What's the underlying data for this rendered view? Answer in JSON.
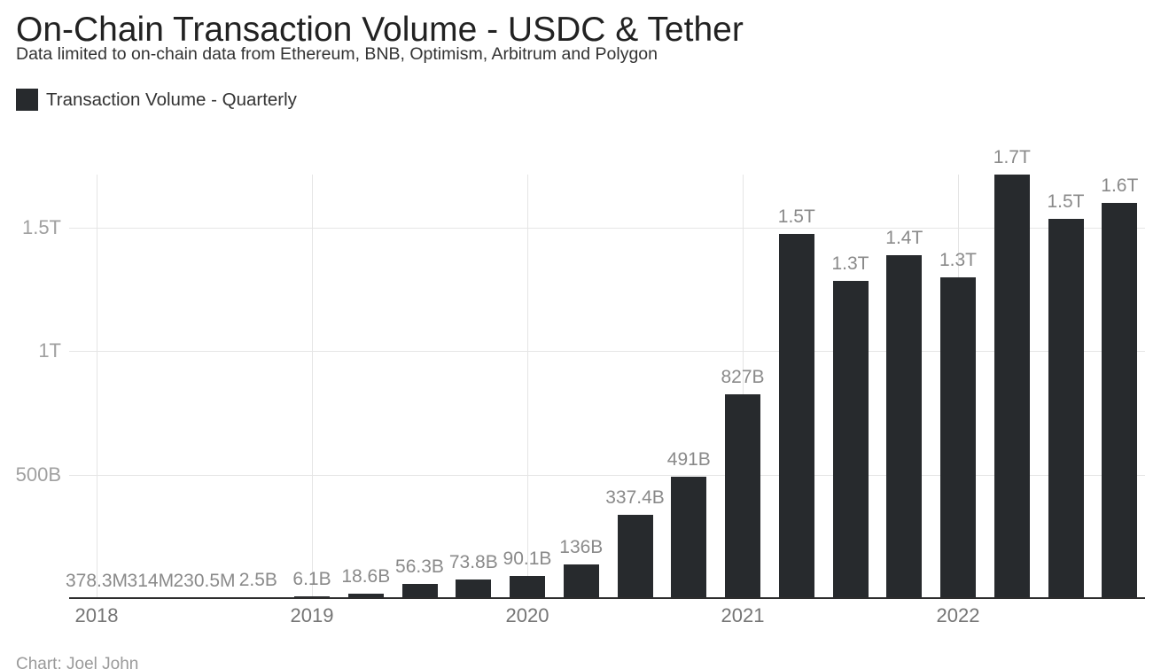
{
  "header": {
    "title": "On-Chain Transaction Volume - USDC & Tether",
    "subtitle": "Data limited to on-chain data from Ethereum, BNB, Optimism, Arbitrum and Polygon",
    "legend": {
      "label": "Transaction Volume - Quarterly"
    }
  },
  "footer": {
    "credit": "Chart: Joel John"
  },
  "colors": {
    "bar": "#272a2d",
    "title_text": "#222222",
    "subtitle_text": "#333333",
    "value_label_text": "#8a8a8a",
    "x_tick_text": "#757575",
    "y_tick_text": "#a0a0a0",
    "gridline": "#e5e5e5",
    "axis_baseline": "#2d2d2d"
  },
  "chart_data": {
    "type": "bar",
    "title": "On-Chain Transaction Volume - USDC & Tether",
    "subtitle": "Data limited to on-chain data from Ethereum, BNB, Optimism, Arbitrum and Polygon",
    "series_name": "Transaction Volume - Quarterly",
    "unit": "USD",
    "categories": [
      "2018 Q1",
      "2018 Q2",
      "2018 Q3",
      "2018 Q4",
      "2019 Q1",
      "2019 Q2",
      "2019 Q3",
      "2019 Q4",
      "2020 Q1",
      "2020 Q2",
      "2020 Q3",
      "2020 Q4",
      "2021 Q1",
      "2021 Q2",
      "2021 Q3",
      "2021 Q4",
      "2022 Q1",
      "2022 Q2",
      "2022 Q3",
      "2022 Q4"
    ],
    "values_billions": [
      0.3783,
      0.314,
      0.2305,
      2.5,
      6.1,
      18.6,
      56.3,
      73.8,
      90.1,
      136,
      337.4,
      491,
      827,
      1475,
      1285,
      1390,
      1300,
      1715,
      1535,
      1600
    ],
    "bar_labels": [
      "378.3M",
      "314M",
      "230.5M",
      "2.5B",
      "6.1B",
      "18.6B",
      "56.3B",
      "73.8B",
      "90.1B",
      "136B",
      "337.4B",
      "491B",
      "827B",
      "1.5T",
      "1.3T",
      "1.4T",
      "1.3T",
      "1.7T",
      "1.5T",
      "1.6T"
    ],
    "x_tick_labels": [
      "2018",
      "2019",
      "2020",
      "2021",
      "2022"
    ],
    "x_tick_positions": [
      0,
      4,
      8,
      12,
      16
    ],
    "y_ticks": [
      {
        "label": "500B",
        "value": 500
      },
      {
        "label": "1T",
        "value": 1000
      },
      {
        "label": "1.5T",
        "value": 1500
      }
    ],
    "ylim": [
      0,
      1715
    ],
    "grid": true,
    "legend_position": "top-left",
    "source_credit": "Chart: Joel John"
  }
}
